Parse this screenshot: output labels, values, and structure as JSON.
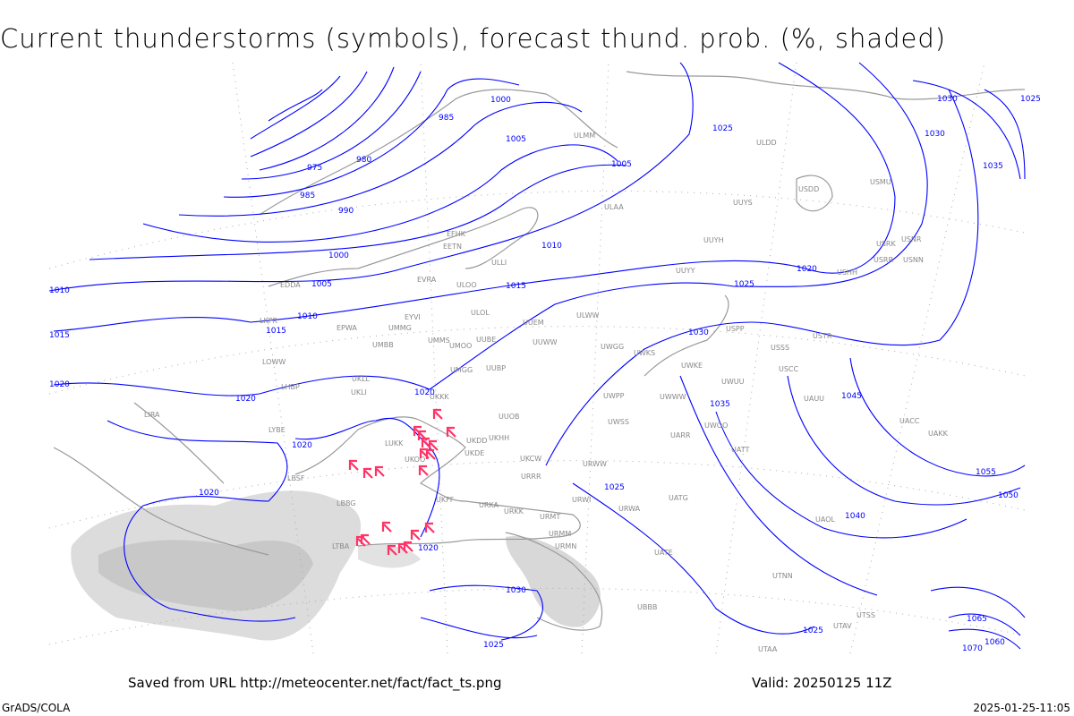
{
  "title": "Current thunderstorms (symbols), forecast thund. prob. (%, shaded)",
  "footer": {
    "source": "Saved from URL http://meteocenter.net/fact/fact_ts.png",
    "valid": "Valid: 20250125 11Z",
    "credit": "GrADS/COLA",
    "timestamp": "2025-01-25-11:05"
  },
  "colors": {
    "isobar": "#0000ff",
    "thunderstorm_symbol": "#ff3366",
    "coastline": "#999999",
    "shading": "#cccccc",
    "station": "#888888"
  },
  "icons": {
    "thunderstorm": "thunderstorm-symbol-icon"
  },
  "isobar_labels": [
    "975",
    "980",
    "985",
    "985",
    "990",
    "1000",
    "1000",
    "1005",
    "1005",
    "1005",
    "1010",
    "1010",
    "1010",
    "1015",
    "1015",
    "1015",
    "1020",
    "1020",
    "1020",
    "1020",
    "1020",
    "1020",
    "1020",
    "1025",
    "1025",
    "1025",
    "1025",
    "1025",
    "1030",
    "1030",
    "1030",
    "1035",
    "1035",
    "1040",
    "1045",
    "1050",
    "1055",
    "1060",
    "1065",
    "1070",
    "1025",
    "1030"
  ],
  "stations": [
    "LKPR",
    "EPWA",
    "UMMG",
    "EYVI",
    "EVRA",
    "ULOO",
    "ULOL",
    "UUEM",
    "UMMS",
    "UMOO",
    "UMBB",
    "LOWW",
    "LHBP",
    "UKLL",
    "UKLI",
    "UMGG",
    "UUBP",
    "UKKK",
    "UUOB",
    "LUKK",
    "UKOO",
    "UKDE",
    "UKHH",
    "UKCW",
    "URRR",
    "LBSF",
    "LBBG",
    "LTBA",
    "UKFF",
    "URKA",
    "URKK",
    "URMT",
    "URMM",
    "URMN",
    "UBBB",
    "LIRA",
    "LYBE",
    "EETN",
    "EFHK",
    "ULLI",
    "UUYY",
    "ULWW",
    "UWWW",
    "UWKS",
    "UWKE",
    "UWPP",
    "UWOO",
    "UWGG",
    "UWSS",
    "URWW",
    "URWA",
    "URWI",
    "UATG",
    "UATT",
    "UATE",
    "UARR",
    "USSS",
    "USCC",
    "USPP",
    "USTR",
    "UACC",
    "UAKK",
    "UAUU",
    "UWUU",
    "USHH",
    "USRR",
    "USRK",
    "USNN",
    "USNR",
    "USDD",
    "USMU",
    "ULDD",
    "UUYS",
    "UUYH",
    "ULAA",
    "ULMM",
    "UTAA",
    "UTAV",
    "UTSS",
    "UAOL",
    "UTNN",
    "EDDA",
    "UUBE",
    "UUWW",
    "UKDD"
  ]
}
